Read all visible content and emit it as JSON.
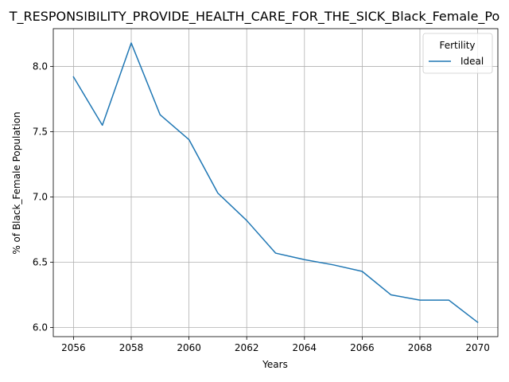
{
  "chart_data": {
    "type": "line",
    "title": "T_RESPONSIBILITY_PROVIDE_HEALTH_CARE_FOR_THE_SICK_Black_Female_Po",
    "xlabel": "Years",
    "ylabel": "% of Black_Female Population",
    "x": [
      2056,
      2057,
      2058,
      2059,
      2060,
      2061,
      2062,
      2063,
      2064,
      2065,
      2066,
      2067,
      2068,
      2069,
      2070
    ],
    "series": [
      {
        "name": "Ideal",
        "color": "#1f77b4",
        "values": [
          7.92,
          7.55,
          8.18,
          7.63,
          7.44,
          7.03,
          6.82,
          6.57,
          6.52,
          6.48,
          6.43,
          6.25,
          6.21,
          6.21,
          6.04
        ]
      }
    ],
    "xlim": [
      2055.3,
      2070.7
    ],
    "ylim": [
      5.93,
      8.29
    ],
    "xticks": [
      2056,
      2058,
      2060,
      2062,
      2064,
      2066,
      2068,
      2070
    ],
    "yticks": [
      6.0,
      6.5,
      7.0,
      7.5,
      8.0
    ],
    "ytick_labels": [
      "6.0",
      "6.5",
      "7.0",
      "7.5",
      "8.0"
    ],
    "grid": true,
    "legend": {
      "title": "Fertility",
      "placement": "top-right"
    }
  }
}
